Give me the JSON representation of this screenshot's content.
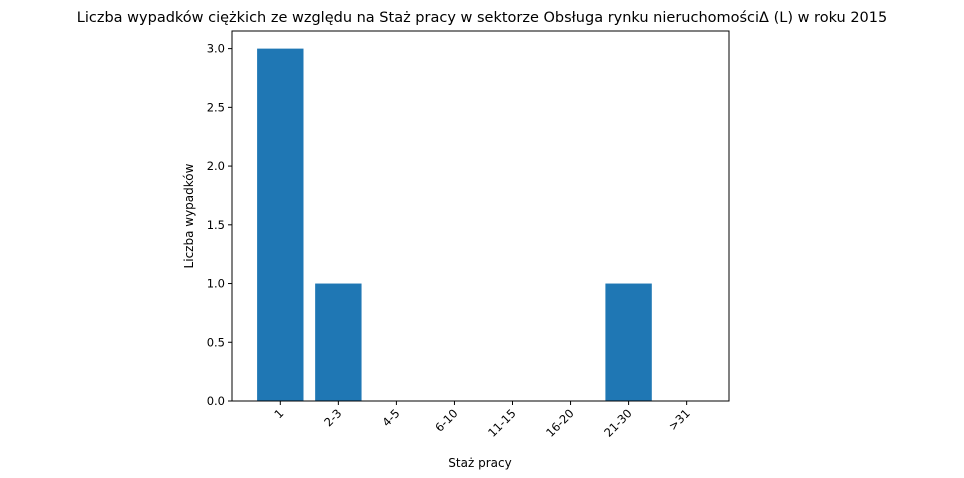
{
  "chart_data": {
    "type": "bar",
    "title": "Liczba wypadków ciężkich ze względu na Staż pracy w sektorze  Obsługa rynku nieruchomościΔ  (L) w roku 2015",
    "xlabel": "Staż pracy",
    "ylabel": "Liczba wypadków",
    "categories": [
      "1",
      "2-3",
      "4-5",
      "6-10",
      "11-15",
      "16-20",
      "21-30",
      ">31"
    ],
    "values": [
      3,
      1,
      0,
      0,
      0,
      0,
      1,
      0
    ],
    "ylim": [
      0,
      3.15
    ],
    "yticks": [
      "0.0",
      "0.5",
      "1.0",
      "1.5",
      "2.0",
      "2.5",
      "3.0"
    ],
    "bar_color": "#1f77b4",
    "grid": false,
    "legend": "none"
  }
}
